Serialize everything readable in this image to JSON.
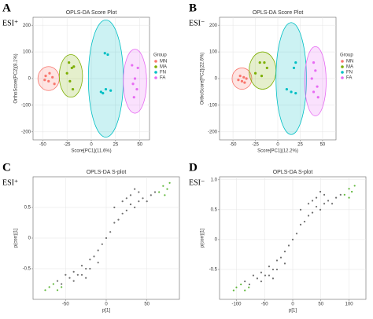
{
  "chart_data": [
    {
      "type": "scatter",
      "panel": "A",
      "mode": "ESI⁺",
      "title": "OPLS-DA Score Plot",
      "xlabel": "Score[PC1](11.6%)",
      "ylabel": "OrthoScore[PC2](8.1%)",
      "xlim": [
        -60,
        60
      ],
      "xticks": [
        -50,
        -25,
        0,
        25,
        50
      ],
      "ylim": [
        -230,
        230
      ],
      "yticks": [
        -200,
        -100,
        0,
        100,
        200
      ],
      "grid": true,
      "legend_title": "Group",
      "series": [
        {
          "name": "MN",
          "color": "#f8766d",
          "x": [
            -47,
            -43,
            -40,
            -44,
            -38,
            -48
          ],
          "values": [
            10,
            20,
            5,
            -10,
            -20,
            -5
          ],
          "ellipse": {
            "cx": -44,
            "cy": 0,
            "rx": 11,
            "ry": 45
          }
        },
        {
          "name": "MA",
          "color": "#7cae00",
          "x": [
            -23,
            -20,
            -18,
            -25,
            -22,
            -19
          ],
          "values": [
            60,
            40,
            45,
            20,
            -10,
            -40
          ],
          "ellipse": {
            "cx": -21,
            "cy": 10,
            "rx": 12,
            "ry": 80
          }
        },
        {
          "name": "FN",
          "color": "#00bfc4",
          "x": [
            14,
            17,
            10,
            15,
            20,
            12
          ],
          "values": [
            95,
            90,
            -50,
            -40,
            -45,
            -55
          ],
          "ellipse": {
            "cx": 15,
            "cy": 0,
            "rx": 18,
            "ry": 220
          }
        },
        {
          "name": "FA",
          "color": "#e76bf3",
          "x": [
            42,
            48,
            45,
            43,
            47,
            44
          ],
          "values": [
            50,
            40,
            0,
            -20,
            -40,
            -70
          ],
          "ellipse": {
            "cx": 45,
            "cy": -10,
            "rx": 12,
            "ry": 120
          }
        }
      ]
    },
    {
      "type": "scatter",
      "panel": "B",
      "mode": "ESI⁻",
      "title": "OPLS-DA Score Plot",
      "xlabel": "Score[PC1](12.2%)",
      "ylabel": "OrthoScore[PC2](22.6%)",
      "xlim": [
        -65,
        65
      ],
      "xticks": [
        -50,
        -25,
        0,
        25,
        50
      ],
      "ylim": [
        -230,
        230
      ],
      "yticks": [
        -200,
        -100,
        0,
        100,
        200
      ],
      "grid": true,
      "legend_title": "Group",
      "series": [
        {
          "name": "MN",
          "color": "#f8766d",
          "x": [
            -42,
            -38,
            -35,
            -40,
            -44,
            -37
          ],
          "values": [
            10,
            5,
            0,
            -10,
            -5,
            -15
          ],
          "ellipse": {
            "cx": -40,
            "cy": 0,
            "rx": 11,
            "ry": 40
          }
        },
        {
          "name": "MA",
          "color": "#7cae00",
          "x": [
            -20,
            -15,
            -12,
            -25,
            -18
          ],
          "values": [
            60,
            60,
            40,
            20,
            10
          ],
          "ellipse": {
            "cx": -17,
            "cy": 30,
            "rx": 15,
            "ry": 70
          }
        },
        {
          "name": "FN",
          "color": "#00bfc4",
          "x": [
            20,
            18,
            10,
            15,
            20
          ],
          "values": [
            60,
            40,
            -40,
            -50,
            -55
          ],
          "ellipse": {
            "cx": 15,
            "cy": 0,
            "rx": 17,
            "ry": 210
          }
        },
        {
          "name": "FA",
          "color": "#e76bf3",
          "x": [
            40,
            42,
            38,
            44,
            40,
            45
          ],
          "values": [
            60,
            30,
            0,
            -30,
            -50,
            -70
          ],
          "ellipse": {
            "cx": 42,
            "cy": -10,
            "rx": 12,
            "ry": 130
          }
        }
      ]
    },
    {
      "type": "scatter",
      "panel": "C",
      "mode": "ESI⁺",
      "title": "OPLS-DA S-plot",
      "xlabel": "p[1]",
      "ylabel": "p(corr)[1]",
      "xlim": [
        -90,
        90
      ],
      "xticks": [
        -50,
        0,
        50
      ],
      "ylim": [
        -1,
        1
      ],
      "yticks": [
        -0.5,
        0,
        0.5
      ],
      "grid": true,
      "series": [
        {
          "color": "#707070",
          "x": [
            -60,
            -55,
            -50,
            -45,
            -40,
            -35,
            -30,
            -25,
            -20,
            -15,
            -10,
            -5,
            0,
            5,
            10,
            15,
            20,
            25,
            30,
            35,
            40,
            45,
            50,
            55,
            60,
            -30,
            -20,
            30,
            20,
            40,
            -40,
            10,
            -10,
            35,
            25,
            -25
          ],
          "values": [
            -0.7,
            -0.75,
            -0.6,
            -0.65,
            -0.55,
            -0.6,
            -0.45,
            -0.5,
            -0.35,
            -0.3,
            -0.2,
            -0.1,
            0,
            0.1,
            0.25,
            0.3,
            0.4,
            0.45,
            0.55,
            0.5,
            0.6,
            0.65,
            0.6,
            0.7,
            0.75,
            -0.6,
            -0.5,
            0.7,
            0.6,
            0.75,
            -0.7,
            0.5,
            -0.4,
            0.8,
            0.65,
            -0.65
          ]
        },
        {
          "color": "#5fb83a",
          "x": [
            70,
            75,
            78,
            65,
            72,
            -70,
            -75,
            -65,
            -60,
            -55
          ],
          "values": [
            0.85,
            0.8,
            0.9,
            0.75,
            0.7,
            -0.8,
            -0.85,
            -0.75,
            -0.85,
            -0.8
          ]
        }
      ]
    },
    {
      "type": "scatter",
      "panel": "D",
      "mode": "ESI⁻",
      "title": "OPLS-DA S-plot",
      "xlabel": "p[1]",
      "ylabel": "p(corr)[1]",
      "xlim": [
        -130,
        130
      ],
      "xticks": [
        -100,
        -50,
        0,
        50,
        100
      ],
      "ylim": [
        -1,
        1.05
      ],
      "yticks": [
        -0.5,
        0,
        0.5,
        {
          "value": 1,
          "label": "1.0"
        }
      ],
      "grid": true,
      "series": [
        {
          "color": "#707070",
          "x": [
            -85,
            -77,
            -70,
            -63,
            -56,
            -49,
            -42,
            -35,
            -28,
            -21,
            -14,
            -7,
            0,
            7,
            14,
            21,
            28,
            35,
            42,
            49,
            56,
            63,
            70,
            77,
            85,
            -42,
            -28,
            42,
            28,
            56,
            -56,
            14,
            -14,
            49,
            35,
            -35
          ],
          "values": [
            -0.7,
            -0.75,
            -0.6,
            -0.65,
            -0.55,
            -0.6,
            -0.45,
            -0.5,
            -0.35,
            -0.3,
            -0.2,
            -0.1,
            0,
            0.1,
            0.25,
            0.3,
            0.4,
            0.45,
            0.55,
            0.5,
            0.6,
            0.65,
            0.6,
            0.7,
            0.75,
            -0.6,
            -0.5,
            0.7,
            0.6,
            0.75,
            -0.7,
            0.5,
            -0.4,
            0.8,
            0.65,
            -0.65
          ]
        },
        {
          "color": "#5fb83a",
          "x": [
            100,
            105,
            110,
            92,
            100,
            -100,
            -105,
            -92,
            -85,
            -78
          ],
          "values": [
            0.85,
            0.8,
            0.9,
            0.75,
            0.7,
            -0.8,
            -0.85,
            -0.75,
            -0.85,
            -0.8
          ]
        }
      ]
    }
  ]
}
